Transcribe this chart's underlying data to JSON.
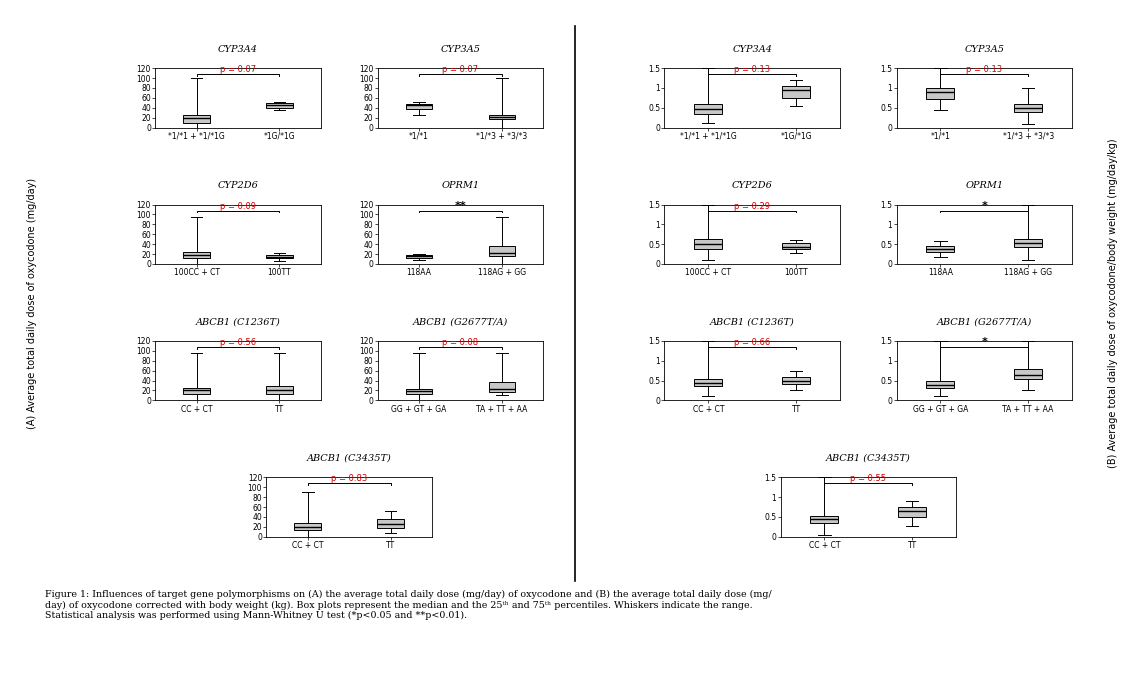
{
  "figure_width": 11.32,
  "figure_height": 6.82,
  "bg_color": "#ffffff",
  "box_color": "#c8c8c8",
  "box_edge_color": "#000000",
  "whisker_color": "#000000",
  "median_color": "#000000",
  "left_panel": {
    "ylabel": "(A) Average total daily dose of oxycodone (mg/day)",
    "ylim": [
      0,
      120
    ],
    "yticks": [
      0,
      20,
      40,
      60,
      80,
      100,
      120
    ],
    "subplots": [
      {
        "title": "CYP3A4",
        "pvalue": "p = 0.07",
        "pcolor": "#cc0000",
        "pvalue_is_sig": false,
        "groups": [
          "*1/*1 + *1/*1G",
          "*1G/*1G"
        ],
        "boxes": [
          {
            "med": 20,
            "q1": 10,
            "q3": 25,
            "whislo": 0,
            "whishi": 100
          },
          {
            "med": 45,
            "q1": 40,
            "q3": 50,
            "whislo": 35,
            "whishi": 52
          }
        ]
      },
      {
        "title": "CYP3A5",
        "pvalue": "p = 0.07",
        "pcolor": "#cc0000",
        "pvalue_is_sig": false,
        "groups": [
          "*1/*1",
          "*1/*3 + *3/*3"
        ],
        "boxes": [
          {
            "med": 45,
            "q1": 38,
            "q3": 48,
            "whislo": 25,
            "whishi": 52
          },
          {
            "med": 22,
            "q1": 18,
            "q3": 26,
            "whislo": 0,
            "whishi": 100
          }
        ]
      },
      {
        "title": "CYP2D6",
        "pvalue": "p = 0.09",
        "pcolor": "#cc0000",
        "pvalue_is_sig": false,
        "groups": [
          "100CC + CT",
          "100TT"
        ],
        "boxes": [
          {
            "med": 18,
            "q1": 13,
            "q3": 25,
            "whislo": 0,
            "whishi": 95
          },
          {
            "med": 15,
            "q1": 12,
            "q3": 18,
            "whislo": 5,
            "whishi": 22
          }
        ]
      },
      {
        "title": "OPRM1",
        "pvalue": "**",
        "pcolor": "#000000",
        "pvalue_is_sig": true,
        "groups": [
          "118AA",
          "118AG + GG"
        ],
        "boxes": [
          {
            "med": 16,
            "q1": 13,
            "q3": 18,
            "whislo": 8,
            "whishi": 20
          },
          {
            "med": 22,
            "q1": 17,
            "q3": 37,
            "whislo": 0,
            "whishi": 95
          }
        ]
      },
      {
        "title": "ABCB1 (C1236T)",
        "pvalue": "p = 0.56",
        "pcolor": "#cc0000",
        "pvalue_is_sig": false,
        "groups": [
          "CC + CT",
          "TT"
        ],
        "boxes": [
          {
            "med": 20,
            "q1": 13,
            "q3": 25,
            "whislo": 0,
            "whishi": 95
          },
          {
            "med": 20,
            "q1": 13,
            "q3": 30,
            "whislo": 0,
            "whishi": 95
          }
        ]
      },
      {
        "title": "ABCB1 (G2677T/A)",
        "pvalue": "p = 0.08",
        "pcolor": "#cc0000",
        "pvalue_is_sig": false,
        "groups": [
          "GG + GT + GA",
          "TA + TT + AA"
        ],
        "boxes": [
          {
            "med": 18,
            "q1": 12,
            "q3": 22,
            "whislo": 0,
            "whishi": 95
          },
          {
            "med": 22,
            "q1": 17,
            "q3": 37,
            "whislo": 10,
            "whishi": 95
          }
        ]
      },
      {
        "title": "ABCB1 (C3435T)",
        "pvalue": "p = 0.83",
        "pcolor": "#cc0000",
        "pvalue_is_sig": false,
        "groups": [
          "CC + CT",
          "TT"
        ],
        "boxes": [
          {
            "med": 20,
            "q1": 13,
            "q3": 28,
            "whislo": 0,
            "whishi": 90
          },
          {
            "med": 25,
            "q1": 18,
            "q3": 35,
            "whislo": 8,
            "whishi": 52
          }
        ]
      }
    ]
  },
  "right_panel": {
    "ylabel": "(B) Average total daily dose of oxycodone/body weight (mg/day/kg)",
    "ylim": [
      0,
      1.5
    ],
    "yticks": [
      0,
      0.5,
      1,
      1.5
    ],
    "subplots": [
      {
        "title": "CYP3A4",
        "pvalue": "p = 0.13",
        "pcolor": "#cc0000",
        "pvalue_is_sig": false,
        "groups": [
          "*1/*1 + *1/*1G",
          "*1G/*1G"
        ],
        "boxes": [
          {
            "med": 0.48,
            "q1": 0.35,
            "q3": 0.6,
            "whislo": 0.12,
            "whishi": 1.5
          },
          {
            "med": 0.95,
            "q1": 0.75,
            "q3": 1.05,
            "whislo": 0.55,
            "whishi": 1.2
          }
        ]
      },
      {
        "title": "CYP3A5",
        "pvalue": "p = 0.13",
        "pcolor": "#cc0000",
        "pvalue_is_sig": false,
        "groups": [
          "*1/*1",
          "*1/*3 + *3/*3"
        ],
        "boxes": [
          {
            "med": 0.9,
            "q1": 0.72,
            "q3": 1.0,
            "whislo": 0.45,
            "whishi": 1.5
          },
          {
            "med": 0.5,
            "q1": 0.4,
            "q3": 0.6,
            "whislo": 0.1,
            "whishi": 1.0
          }
        ]
      },
      {
        "title": "CYP2D6",
        "pvalue": "p = 0.29",
        "pcolor": "#cc0000",
        "pvalue_is_sig": false,
        "groups": [
          "100CC + CT",
          "100TT"
        ],
        "boxes": [
          {
            "med": 0.5,
            "q1": 0.38,
            "q3": 0.62,
            "whislo": 0.1,
            "whishi": 1.5
          },
          {
            "med": 0.44,
            "q1": 0.38,
            "q3": 0.52,
            "whislo": 0.28,
            "whishi": 0.6
          }
        ]
      },
      {
        "title": "OPRM1",
        "pvalue": "*",
        "pcolor": "#000000",
        "pvalue_is_sig": true,
        "groups": [
          "118AA",
          "118AG + GG"
        ],
        "boxes": [
          {
            "med": 0.38,
            "q1": 0.3,
            "q3": 0.46,
            "whislo": 0.18,
            "whishi": 0.58
          },
          {
            "med": 0.52,
            "q1": 0.42,
            "q3": 0.62,
            "whislo": 0.1,
            "whishi": 1.5
          }
        ]
      },
      {
        "title": "ABCB1 (C1236T)",
        "pvalue": "p = 0.66",
        "pcolor": "#cc0000",
        "pvalue_is_sig": false,
        "groups": [
          "CC + CT",
          "TT"
        ],
        "boxes": [
          {
            "med": 0.45,
            "q1": 0.35,
            "q3": 0.55,
            "whislo": 0.1,
            "whishi": 1.5
          },
          {
            "med": 0.5,
            "q1": 0.42,
            "q3": 0.6,
            "whislo": 0.25,
            "whishi": 0.75
          }
        ]
      },
      {
        "title": "ABCB1 (G2677T/A)",
        "pvalue": "*",
        "pcolor": "#000000",
        "pvalue_is_sig": true,
        "groups": [
          "GG + GT + GA",
          "TA + TT + AA"
        ],
        "boxes": [
          {
            "med": 0.4,
            "q1": 0.3,
            "q3": 0.5,
            "whislo": 0.1,
            "whishi": 1.5
          },
          {
            "med": 0.65,
            "q1": 0.55,
            "q3": 0.78,
            "whislo": 0.25,
            "whishi": 1.5
          }
        ]
      },
      {
        "title": "ABCB1 (C3435T)",
        "pvalue": "p = 0.55",
        "pcolor": "#cc0000",
        "pvalue_is_sig": false,
        "groups": [
          "CC + CT",
          "TT"
        ],
        "boxes": [
          {
            "med": 0.45,
            "q1": 0.35,
            "q3": 0.52,
            "whislo": 0.05,
            "whishi": 1.5
          },
          {
            "med": 0.65,
            "q1": 0.5,
            "q3": 0.75,
            "whislo": 0.28,
            "whishi": 0.9
          }
        ]
      }
    ]
  }
}
